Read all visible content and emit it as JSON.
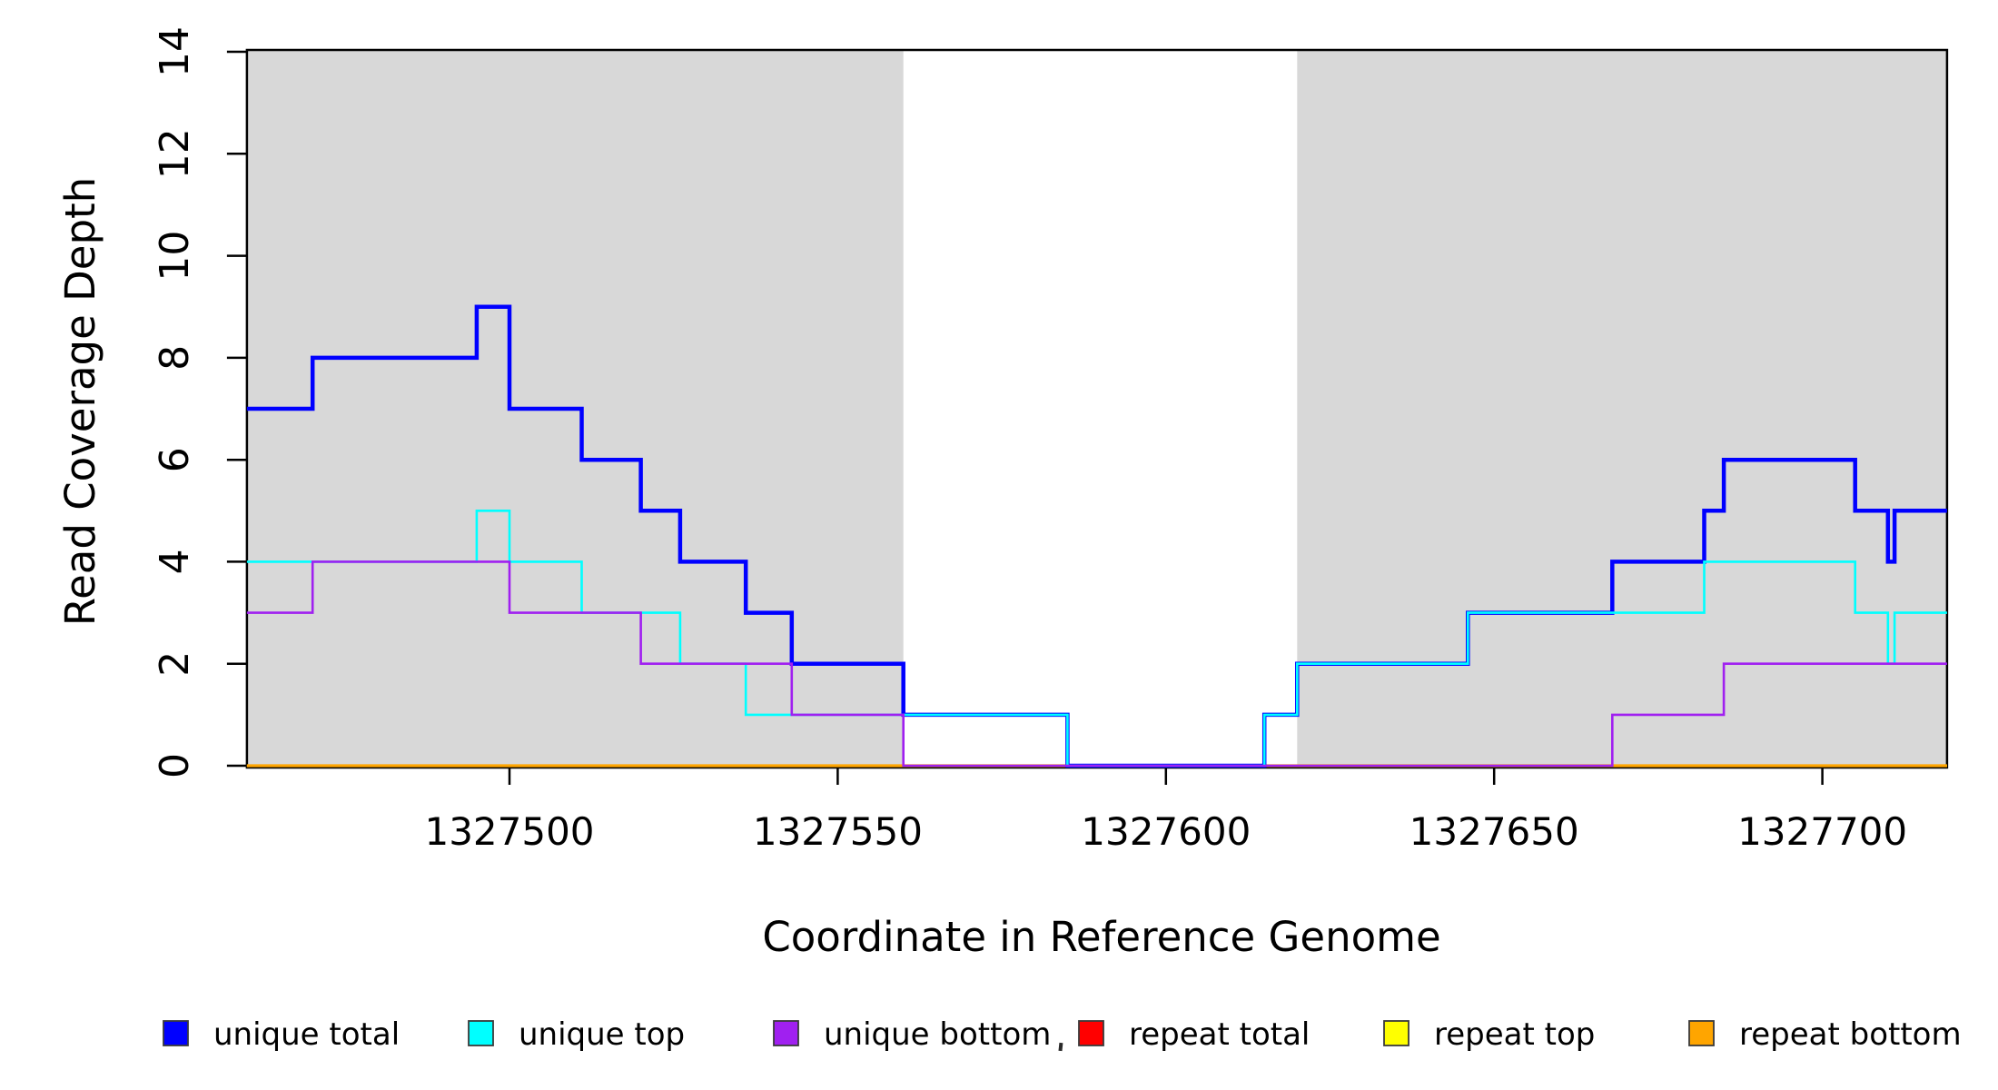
{
  "chart_data": {
    "type": "line",
    "subtype": "step-coverage-plot",
    "title": "",
    "xlabel": "Coordinate in Reference Genome",
    "ylabel": "Read Coverage Depth",
    "xlim": [
      1327460,
      1327719
    ],
    "ylim": [
      0,
      14
    ],
    "x_ticks": [
      "1327500",
      "1327550",
      "1327600",
      "1327650",
      "1327700"
    ],
    "x_tick_values": [
      1327500,
      1327550,
      1327600,
      1327650,
      1327700
    ],
    "y_ticks": [
      "0",
      "2",
      "4",
      "6",
      "8",
      "10",
      "12",
      "14"
    ],
    "y_tick_values": [
      0,
      2,
      4,
      6,
      8,
      10,
      12,
      14
    ],
    "grid": false,
    "shaded_regions": {
      "color": "#D8D8D8",
      "intervals": [
        [
          1327460,
          1327560
        ],
        [
          1327620,
          1327719
        ]
      ]
    },
    "series": [
      {
        "name": "repeat total",
        "color": "#FF0000",
        "width": 2.4,
        "steps": [
          [
            1327460,
            0
          ]
        ]
      },
      {
        "name": "repeat top",
        "color": "#FFFF00",
        "width": 2.4,
        "steps": [
          [
            1327460,
            0
          ]
        ]
      },
      {
        "name": "repeat bottom",
        "color": "#FFA500",
        "width": 3.2,
        "steps": [
          [
            1327460,
            0
          ]
        ]
      },
      {
        "name": "unique total",
        "color": "#0000FF",
        "width": 4.5,
        "steps": [
          [
            1327460,
            7
          ],
          [
            1327470,
            8
          ],
          [
            1327495,
            9
          ],
          [
            1327500,
            7
          ],
          [
            1327511,
            6
          ],
          [
            1327520,
            5
          ],
          [
            1327526,
            4
          ],
          [
            1327536,
            3
          ],
          [
            1327543,
            2
          ],
          [
            1327560,
            1
          ],
          [
            1327585,
            0
          ],
          [
            1327615,
            1
          ],
          [
            1327620,
            2
          ],
          [
            1327646,
            3
          ],
          [
            1327668,
            4
          ],
          [
            1327682,
            5
          ],
          [
            1327685,
            6
          ],
          [
            1327705,
            5
          ],
          [
            1327710,
            4
          ],
          [
            1327711,
            5
          ]
        ]
      },
      {
        "name": "unique top",
        "color": "#00FFFF",
        "width": 2.6,
        "steps": [
          [
            1327460,
            4
          ],
          [
            1327495,
            5
          ],
          [
            1327500,
            4
          ],
          [
            1327511,
            3
          ],
          [
            1327526,
            2
          ],
          [
            1327536,
            1
          ],
          [
            1327585,
            0
          ],
          [
            1327615,
            1
          ],
          [
            1327620,
            2
          ],
          [
            1327646,
            3
          ],
          [
            1327682,
            4
          ],
          [
            1327705,
            3
          ],
          [
            1327710,
            2
          ],
          [
            1327711,
            3
          ]
        ]
      },
      {
        "name": "unique bottom",
        "color": "#A020F0",
        "width": 2.6,
        "steps": [
          [
            1327460,
            3
          ],
          [
            1327470,
            4
          ],
          [
            1327500,
            3
          ],
          [
            1327520,
            2
          ],
          [
            1327543,
            1
          ],
          [
            1327560,
            0
          ],
          [
            1327668,
            1
          ],
          [
            1327685,
            2
          ]
        ]
      }
    ],
    "legend": {
      "position": "bottom",
      "entries": [
        {
          "label": "unique total",
          "color": "#0000FF"
        },
        {
          "label": "unique top",
          "color": "#00FFFF"
        },
        {
          "label": "unique bottom",
          "color": "#A020F0"
        },
        {
          "label": "repeat total",
          "color": "#FF0000"
        },
        {
          "label": "repeat top",
          "color": "#FFFF00"
        },
        {
          "label": "repeat bottom",
          "color": "#FFA500"
        }
      ]
    }
  }
}
